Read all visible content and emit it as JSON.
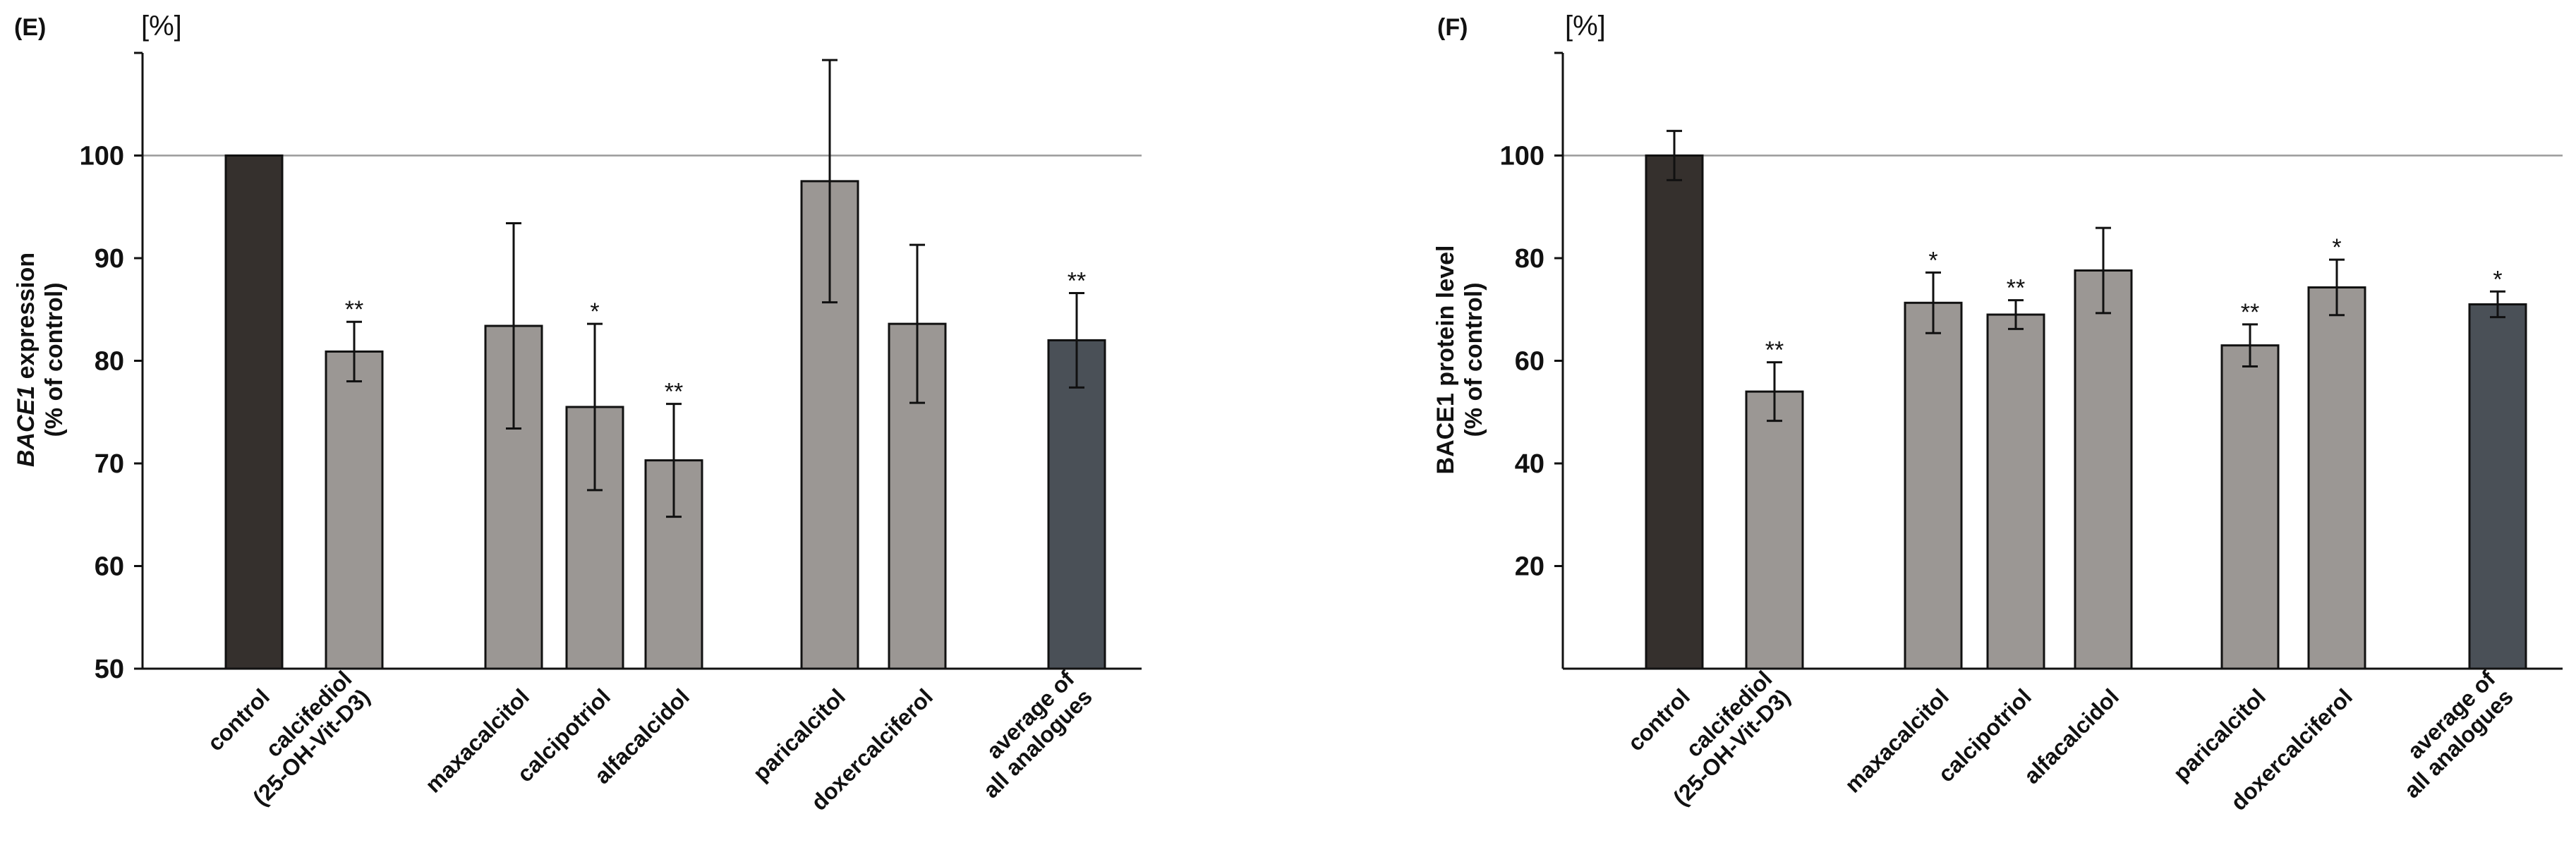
{
  "colors": {
    "dark": "#35302d",
    "gray": "#9b9794",
    "slate": "#4a5057",
    "ref": "#9a9a9a"
  },
  "chart_data": [
    {
      "type": "bar",
      "panel_label": "(E)",
      "unit_label": "[%]",
      "ylabel_italic": "BACE1",
      "ylabel_rest": " expression",
      "ylabel_line2": "(% of control)",
      "ylim": [
        50,
        110
      ],
      "yticks": [
        50,
        60,
        70,
        80,
        90,
        100
      ],
      "reference_line": 100,
      "categories": [
        {
          "lines": [
            "control"
          ],
          "value": 100,
          "error": 0,
          "sig": "",
          "color": "dark",
          "group": 0
        },
        {
          "lines": [
            "calcifediol",
            "(25-OH-Vit-D3)"
          ],
          "value": 80.9,
          "error": 2.9,
          "sig": "**",
          "color": "gray",
          "group": 0
        },
        {
          "lines": [
            "maxacalcitol"
          ],
          "value": 83.4,
          "error": 10.0,
          "sig": "",
          "color": "gray",
          "group": 1
        },
        {
          "lines": [
            "calcipotriol"
          ],
          "value": 75.5,
          "error": 8.1,
          "sig": "*",
          "color": "gray",
          "group": 1
        },
        {
          "lines": [
            "alfacalcidol"
          ],
          "value": 70.3,
          "error": 5.5,
          "sig": "**",
          "color": "gray",
          "group": 1
        },
        {
          "lines": [
            "paricalcitol"
          ],
          "value": 97.5,
          "error": 11.8,
          "sig": "",
          "color": "gray",
          "group": 2
        },
        {
          "lines": [
            "doxercalciferol"
          ],
          "value": 83.6,
          "error": 7.7,
          "sig": "",
          "color": "gray",
          "group": 2
        },
        {
          "lines": [
            "average of",
            "all analogues"
          ],
          "value": 82.0,
          "error": 4.6,
          "sig": "**",
          "color": "slate",
          "group": 3
        }
      ]
    },
    {
      "type": "bar",
      "panel_label": "(F)",
      "unit_label": "[%]",
      "ylabel_italic": "",
      "ylabel_rest": "BACE1 protein level",
      "ylabel_line2": "(% of control)",
      "ylim": [
        0,
        120
      ],
      "yticks": [
        20,
        40,
        60,
        80,
        100
      ],
      "reference_line": 100,
      "categories": [
        {
          "lines": [
            "control"
          ],
          "value": 100,
          "error": 4.8,
          "sig": "",
          "color": "dark",
          "group": 0
        },
        {
          "lines": [
            "calcifediol",
            "(25-OH-Vit-D3)"
          ],
          "value": 54.0,
          "error": 5.7,
          "sig": "**",
          "color": "gray",
          "group": 0
        },
        {
          "lines": [
            "maxacalcitol"
          ],
          "value": 71.3,
          "error": 5.9,
          "sig": "*",
          "color": "gray",
          "group": 1
        },
        {
          "lines": [
            "calcipotriol"
          ],
          "value": 69.0,
          "error": 2.8,
          "sig": "**",
          "color": "gray",
          "group": 1
        },
        {
          "lines": [
            "alfacalcidol"
          ],
          "value": 77.6,
          "error": 8.3,
          "sig": "",
          "color": "gray",
          "group": 1
        },
        {
          "lines": [
            "paricalcitol"
          ],
          "value": 63.0,
          "error": 4.1,
          "sig": "**",
          "color": "gray",
          "group": 2
        },
        {
          "lines": [
            "doxercalciferol"
          ],
          "value": 74.3,
          "error": 5.4,
          "sig": "*",
          "color": "gray",
          "group": 2
        },
        {
          "lines": [
            "average of",
            "all analogues"
          ],
          "value": 71.0,
          "error": 2.5,
          "sig": "*",
          "color": "slate",
          "group": 3
        }
      ]
    }
  ]
}
